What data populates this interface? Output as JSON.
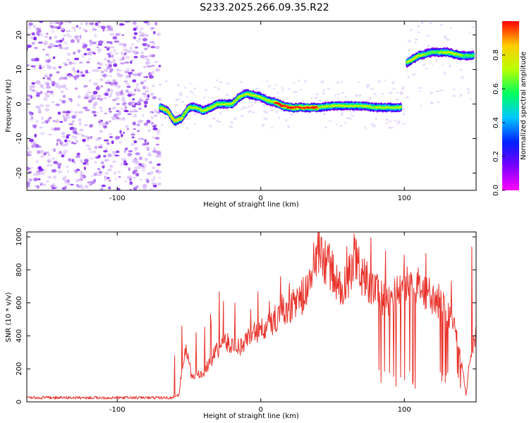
{
  "title": "S233.2025.266.09.35.R22",
  "chart_data": [
    {
      "type": "heatmap",
      "xlabel": "Height of straight line (km)",
      "ylabel": "Frequency (Hz)",
      "xlim": [
        -163,
        150
      ],
      "ylim": [
        -25,
        24
      ],
      "xticks": [
        -100,
        0,
        100
      ],
      "yticks": [
        -20,
        -10,
        0,
        10,
        20
      ],
      "colorbar": {
        "label": "Normalized spectral amplitude",
        "range": [
          0,
          1
        ],
        "ticks": [
          0.0,
          0.2,
          0.4,
          0.6,
          0.8
        ],
        "colormap": [
          "#ff00ff",
          "#7a00ff",
          "#0020ff",
          "#00c8ff",
          "#00ff60",
          "#b8ff00",
          "#ffcc00",
          "#ff0000"
        ]
      },
      "noise_region_x": [
        -163,
        -72
      ],
      "ridge": [
        {
          "x": -70,
          "y": -1
        },
        {
          "x": -65,
          "y": -2
        },
        {
          "x": -60,
          "y": -5
        },
        {
          "x": -55,
          "y": -4
        },
        {
          "x": -50,
          "y": -1
        },
        {
          "x": -45,
          "y": -1
        },
        {
          "x": -40,
          "y": -2
        },
        {
          "x": -35,
          "y": -1
        },
        {
          "x": -30,
          "y": 0
        },
        {
          "x": -20,
          "y": 0
        },
        {
          "x": -15,
          "y": 2
        },
        {
          "x": -10,
          "y": 3
        },
        {
          "x": -5,
          "y": 2.5
        },
        {
          "x": 0,
          "y": 2
        },
        {
          "x": 5,
          "y": 1
        },
        {
          "x": 10,
          "y": 0.5
        },
        {
          "x": 15,
          "y": -0.5
        },
        {
          "x": 20,
          "y": -1
        },
        {
          "x": 30,
          "y": -1
        },
        {
          "x": 40,
          "y": -1
        },
        {
          "x": 50,
          "y": -0.5
        },
        {
          "x": 60,
          "y": -0.5
        },
        {
          "x": 70,
          "y": -0.5
        },
        {
          "x": 80,
          "y": -1
        },
        {
          "x": 90,
          "y": -1
        },
        {
          "x": 98,
          "y": -1
        }
      ],
      "upper_band": [
        {
          "x": 102,
          "y": 12
        },
        {
          "x": 110,
          "y": 14
        },
        {
          "x": 120,
          "y": 15
        },
        {
          "x": 130,
          "y": 15
        },
        {
          "x": 140,
          "y": 14
        },
        {
          "x": 148,
          "y": 14
        }
      ]
    },
    {
      "type": "line",
      "xlabel": "Height of straight line (km)",
      "ylabel": "SNR (10 * v/v)",
      "xlim": [
        -163,
        150
      ],
      "ylim": [
        0,
        1030
      ],
      "xticks": [
        -100,
        0,
        100
      ],
      "yticks": [
        0,
        200,
        400,
        600,
        800,
        1000
      ],
      "color": "#e8322a",
      "anchors": [
        {
          "x": -163,
          "y": 25
        },
        {
          "x": -62,
          "y": 25
        },
        {
          "x": -57,
          "y": 40
        },
        {
          "x": -55,
          "y": 200
        },
        {
          "x": -52,
          "y": 320
        },
        {
          "x": -48,
          "y": 150
        },
        {
          "x": -40,
          "y": 170
        },
        {
          "x": -30,
          "y": 320
        },
        {
          "x": -25,
          "y": 360
        },
        {
          "x": -15,
          "y": 330
        },
        {
          "x": -5,
          "y": 420
        },
        {
          "x": 5,
          "y": 450
        },
        {
          "x": 15,
          "y": 560
        },
        {
          "x": 25,
          "y": 600
        },
        {
          "x": 32,
          "y": 670
        },
        {
          "x": 40,
          "y": 920
        },
        {
          "x": 48,
          "y": 820
        },
        {
          "x": 55,
          "y": 680
        },
        {
          "x": 60,
          "y": 720
        },
        {
          "x": 65,
          "y": 880
        },
        {
          "x": 70,
          "y": 780
        },
        {
          "x": 78,
          "y": 700
        },
        {
          "x": 85,
          "y": 620
        },
        {
          "x": 92,
          "y": 630
        },
        {
          "x": 100,
          "y": 700
        },
        {
          "x": 110,
          "y": 700
        },
        {
          "x": 120,
          "y": 640
        },
        {
          "x": 128,
          "y": 580
        },
        {
          "x": 135,
          "y": 480
        },
        {
          "x": 140,
          "y": 220
        },
        {
          "x": 143,
          "y": 40
        },
        {
          "x": 146,
          "y": 300
        },
        {
          "x": 150,
          "y": 400
        }
      ],
      "spikes": [
        {
          "x": -60,
          "y": 280
        },
        {
          "x": -55,
          "y": 460
        },
        {
          "x": -45,
          "y": 420
        },
        {
          "x": -35,
          "y": 530
        },
        {
          "x": -26,
          "y": 610
        },
        {
          "x": -18,
          "y": 600
        },
        {
          "x": -7,
          "y": 560
        },
        {
          "x": 6,
          "y": 610
        },
        {
          "x": 20,
          "y": 720
        },
        {
          "x": 42,
          "y": 1000
        },
        {
          "x": 65,
          "y": 1020
        },
        {
          "x": 100,
          "y": 890
        },
        {
          "x": 115,
          "y": 900
        },
        {
          "x": 147,
          "y": 940
        }
      ],
      "dropout_region_x": [
        80,
        140
      ]
    }
  ]
}
